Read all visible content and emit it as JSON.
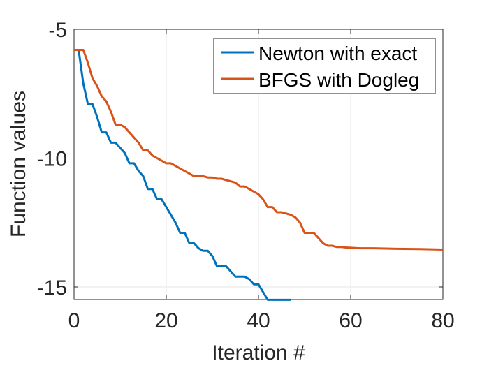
{
  "chart_data": {
    "type": "line",
    "title": "",
    "xlabel": "Iteration #",
    "ylabel": "Function values",
    "xlim": [
      0,
      80
    ],
    "ylim": [
      -15.5,
      -5
    ],
    "grid": true,
    "legend_position": "top-right",
    "x_ticks": [
      0,
      20,
      40,
      60,
      80
    ],
    "y_ticks": [
      -5,
      -10,
      -15
    ],
    "series": [
      {
        "name": "Newton with exact",
        "color": "#0072BD",
        "x": [
          0,
          1,
          2,
          3,
          4,
          5,
          6,
          7,
          8,
          9,
          10,
          11,
          12,
          13,
          14,
          15,
          16,
          17,
          18,
          19,
          20,
          21,
          22,
          23,
          24,
          25,
          26,
          27,
          28,
          29,
          30,
          31,
          32,
          33,
          34,
          35,
          36,
          37,
          38,
          39,
          40,
          41,
          42,
          43,
          44,
          45,
          46,
          47
        ],
        "y": [
          -5.8,
          -5.8,
          -7.1,
          -7.9,
          -7.9,
          -8.4,
          -9.0,
          -9.0,
          -9.4,
          -9.4,
          -9.6,
          -9.8,
          -10.2,
          -10.2,
          -10.5,
          -10.7,
          -11.2,
          -11.2,
          -11.6,
          -11.6,
          -11.9,
          -12.2,
          -12.5,
          -12.9,
          -12.9,
          -13.3,
          -13.3,
          -13.5,
          -13.6,
          -13.6,
          -13.8,
          -14.2,
          -14.2,
          -14.2,
          -14.4,
          -14.6,
          -14.6,
          -14.6,
          -14.7,
          -14.9,
          -14.9,
          -15.2,
          -15.5,
          -15.5,
          -15.5,
          -15.5,
          -15.5,
          -15.5
        ]
      },
      {
        "name": "BFGS with Dogleg",
        "color": "#D95319",
        "x": [
          0,
          1,
          2,
          3,
          4,
          5,
          6,
          7,
          8,
          9,
          10,
          11,
          12,
          13,
          14,
          15,
          16,
          17,
          18,
          19,
          20,
          21,
          22,
          23,
          24,
          25,
          26,
          27,
          28,
          29,
          30,
          31,
          32,
          33,
          34,
          35,
          36,
          37,
          38,
          39,
          40,
          41,
          42,
          43,
          44,
          45,
          46,
          47,
          48,
          49,
          50,
          51,
          52,
          53,
          54,
          55,
          56,
          57,
          58,
          59,
          60,
          62,
          65,
          70,
          75,
          80
        ],
        "y": [
          -5.8,
          -5.8,
          -5.8,
          -6.3,
          -6.9,
          -7.2,
          -7.6,
          -7.8,
          -8.2,
          -8.7,
          -8.7,
          -8.8,
          -9.0,
          -9.2,
          -9.4,
          -9.7,
          -9.7,
          -9.9,
          -10.0,
          -10.1,
          -10.2,
          -10.2,
          -10.3,
          -10.4,
          -10.5,
          -10.6,
          -10.7,
          -10.7,
          -10.7,
          -10.75,
          -10.75,
          -10.8,
          -10.8,
          -10.85,
          -10.9,
          -10.95,
          -11.1,
          -11.1,
          -11.2,
          -11.3,
          -11.4,
          -11.6,
          -11.9,
          -11.9,
          -12.1,
          -12.1,
          -12.15,
          -12.2,
          -12.3,
          -12.5,
          -12.9,
          -12.9,
          -12.9,
          -13.1,
          -13.3,
          -13.4,
          -13.4,
          -13.45,
          -13.45,
          -13.47,
          -13.48,
          -13.5,
          -13.5,
          -13.52,
          -13.53,
          -13.55
        ]
      }
    ]
  }
}
